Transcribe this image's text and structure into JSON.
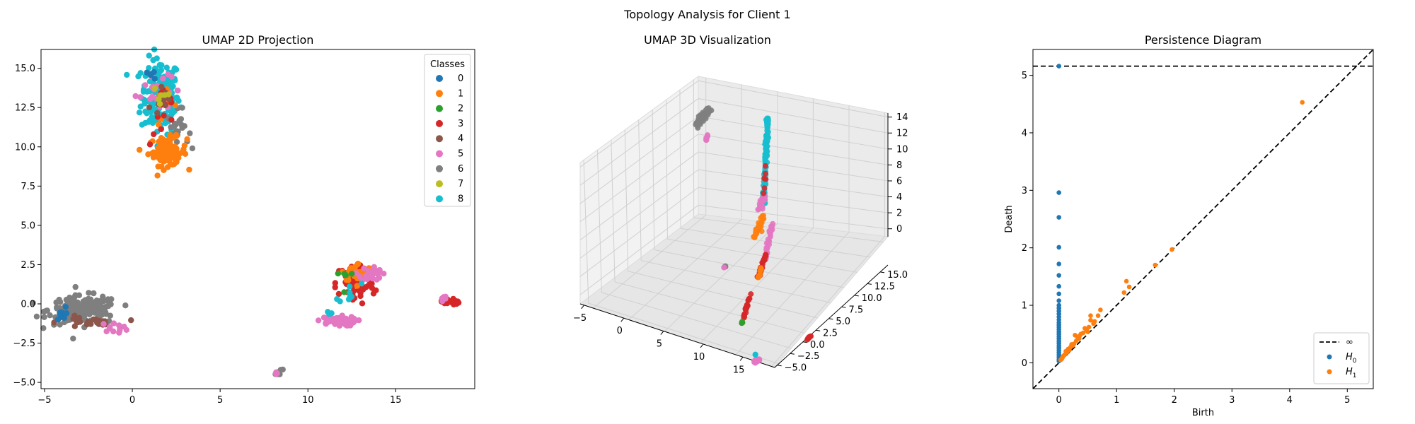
{
  "figure": {
    "suptitle": "Topology Analysis for Client 1"
  },
  "palette": [
    "#1f77b4",
    "#ff7f0e",
    "#2ca02c",
    "#d62728",
    "#8c564b",
    "#e377c2",
    "#7f7f7f",
    "#bcbd22",
    "#17becf"
  ],
  "chart_data": [
    {
      "type": "scatter",
      "title": "UMAP 2D Projection",
      "xlabel": "",
      "ylabel": "",
      "xlim": [
        -5.2,
        19.5
      ],
      "ylim": [
        -5.4,
        16.2
      ],
      "xticks": [
        -5,
        0,
        5,
        10,
        15
      ],
      "yticks": [
        -5.0,
        -2.5,
        0.0,
        2.5,
        5.0,
        7.5,
        10.0,
        12.5,
        15.0
      ],
      "ytick_labels": [
        "−5.0",
        "−2.5",
        "0.0",
        "2.5",
        "5.0",
        "7.5",
        "10.0",
        "12.5",
        "15.0"
      ],
      "xtick_labels": [
        "−5",
        "0",
        "5",
        "10",
        "15"
      ],
      "legend": {
        "title": "Classes",
        "position": "top-right",
        "entries": [
          "0",
          "1",
          "2",
          "3",
          "4",
          "5",
          "6",
          "7",
          "8"
        ]
      },
      "clusters": [
        {
          "class": 8,
          "cx": 1.6,
          "cy": 13.2,
          "sx": 0.55,
          "sy": 1.2,
          "n": 180
        },
        {
          "class": 6,
          "cx": 2.6,
          "cy": 11.1,
          "sx": 0.3,
          "sy": 0.6,
          "n": 25
        },
        {
          "class": 5,
          "cx": 1.2,
          "cy": 13.8,
          "sx": 0.5,
          "sy": 0.8,
          "n": 20
        },
        {
          "class": 1,
          "cx": 2.0,
          "cy": 9.7,
          "sx": 0.55,
          "sy": 0.45,
          "n": 90
        },
        {
          "class": 1,
          "cx": 1.9,
          "cy": 12.5,
          "sx": 0.3,
          "sy": 0.6,
          "n": 10
        },
        {
          "class": 3,
          "cx": 1.8,
          "cy": 12.0,
          "sx": 0.4,
          "sy": 1.0,
          "n": 12
        },
        {
          "class": 4,
          "cx": 1.6,
          "cy": 13.0,
          "sx": 0.4,
          "sy": 0.8,
          "n": 8
        },
        {
          "class": 7,
          "cx": 1.7,
          "cy": 13.3,
          "sx": 0.3,
          "sy": 0.5,
          "n": 6
        },
        {
          "class": 0,
          "cx": 1.0,
          "cy": 14.6,
          "sx": 0.3,
          "sy": 0.4,
          "n": 5
        },
        {
          "class": 6,
          "cx": -2.8,
          "cy": -0.4,
          "sx": 1.0,
          "sy": 0.45,
          "n": 170
        },
        {
          "class": 4,
          "cx": -2.6,
          "cy": -1.2,
          "sx": 0.8,
          "sy": 0.2,
          "n": 25
        },
        {
          "class": 5,
          "cx": -1.0,
          "cy": -1.5,
          "sx": 0.4,
          "sy": 0.15,
          "n": 12
        },
        {
          "class": 0,
          "cx": -4.1,
          "cy": -0.7,
          "sx": 0.15,
          "sy": 0.25,
          "n": 10
        },
        {
          "class": 3,
          "cx": 12.7,
          "cy": 1.3,
          "sx": 0.55,
          "sy": 0.7,
          "n": 75
        },
        {
          "class": 1,
          "cx": 12.9,
          "cy": 2.0,
          "sx": 0.5,
          "sy": 0.3,
          "n": 35
        },
        {
          "class": 5,
          "cx": 13.6,
          "cy": 1.9,
          "sx": 0.3,
          "sy": 0.25,
          "n": 25
        },
        {
          "class": 8,
          "cx": 12.4,
          "cy": 0.9,
          "sx": 0.3,
          "sy": 0.5,
          "n": 8
        },
        {
          "class": 2,
          "cx": 12.5,
          "cy": 1.5,
          "sx": 0.3,
          "sy": 0.4,
          "n": 5
        },
        {
          "class": 5,
          "cx": 11.6,
          "cy": -1.1,
          "sx": 0.55,
          "sy": 0.15,
          "n": 70
        },
        {
          "class": 8,
          "cx": 11.3,
          "cy": -0.7,
          "sx": 0.1,
          "sy": 0.1,
          "n": 3
        },
        {
          "class": 6,
          "cx": 8.3,
          "cy": -4.3,
          "sx": 0.12,
          "sy": 0.12,
          "n": 8
        },
        {
          "class": 5,
          "cx": 8.2,
          "cy": -4.45,
          "sx": 0.05,
          "sy": 0.05,
          "n": 4
        },
        {
          "class": 3,
          "cx": 18.1,
          "cy": 0.15,
          "sx": 0.25,
          "sy": 0.12,
          "n": 22
        },
        {
          "class": 5,
          "cx": 17.7,
          "cy": 0.35,
          "sx": 0.1,
          "sy": 0.08,
          "n": 6
        }
      ]
    },
    {
      "type": "scatter3d",
      "title": "UMAP 3D Visualization",
      "xticks": [
        -5,
        0,
        5,
        10,
        15
      ],
      "xtick_labels": [
        "−5",
        "0",
        "5",
        "10",
        "15"
      ],
      "yticks": [
        -5.0,
        -2.5,
        0.0,
        2.5,
        5.0,
        7.5,
        10.0,
        12.5,
        15.0
      ],
      "ytick_labels": [
        "−5.0",
        "−2.5",
        "0.0",
        "2.5",
        "5.0",
        "7.5",
        "10.0",
        "12.5",
        "15.0"
      ],
      "zticks": [
        0,
        2,
        4,
        6,
        8,
        10,
        12,
        14
      ],
      "ztick_labels": [
        "0",
        "2",
        "4",
        "6",
        "8",
        "10",
        "12",
        "14"
      ],
      "xlim": [
        -5.5,
        19
      ],
      "ylim": [
        -5.5,
        16.5
      ],
      "zlim": [
        -1,
        14.5
      ],
      "clusters": [
        {
          "class": 6,
          "from": [
            -4.6,
            15.0,
            9.6
          ],
          "to": [
            -3.6,
            15.5,
            11.1
          ],
          "spread": 0.55,
          "n": 70
        },
        {
          "class": 5,
          "from": [
            -3.6,
            15.0,
            8.0
          ],
          "to": [
            -3.2,
            15.0,
            8.8
          ],
          "spread": 0.2,
          "n": 6
        },
        {
          "class": 8,
          "from": [
            7.0,
            10.5,
            4.5
          ],
          "to": [
            7.2,
            11.0,
            14.0
          ],
          "spread": 0.25,
          "n": 110
        },
        {
          "class": 5,
          "from": [
            6.4,
            10.6,
            4.0
          ],
          "to": [
            7.0,
            10.6,
            5.5
          ],
          "spread": 0.35,
          "n": 18
        },
        {
          "class": 1,
          "from": [
            6.0,
            10.3,
            1.0
          ],
          "to": [
            6.8,
            10.8,
            3.2
          ],
          "spread": 0.45,
          "n": 30
        },
        {
          "class": 3,
          "from": [
            7.0,
            10.6,
            5.5
          ],
          "to": [
            7.2,
            10.8,
            9.0
          ],
          "spread": 0.2,
          "n": 6
        },
        {
          "class": 5,
          "from": [
            13.2,
            1.5,
            5.0
          ],
          "to": [
            13.5,
            2.4,
            8.6
          ],
          "spread": 0.2,
          "n": 35
        },
        {
          "class": 3,
          "from": [
            12.6,
            1.0,
            3.0
          ],
          "to": [
            13.2,
            1.6,
            5.5
          ],
          "spread": 0.2,
          "n": 30
        },
        {
          "class": 1,
          "from": [
            12.6,
            1.2,
            3.0
          ],
          "to": [
            12.8,
            1.4,
            4.2
          ],
          "spread": 0.15,
          "n": 8
        },
        {
          "class": 3,
          "from": [
            11.6,
            -0.5,
            -1.2
          ],
          "to": [
            12.2,
            0.2,
            1.8
          ],
          "spread": 0.15,
          "n": 25
        },
        {
          "class": 2,
          "from": [
            11.6,
            -0.6,
            -1.2
          ],
          "to": [
            11.7,
            -0.5,
            -0.9
          ],
          "spread": 0.1,
          "n": 3
        },
        {
          "class": 6,
          "from": [
            4.0,
            7.5,
            -1.0
          ],
          "to": [
            4.2,
            7.5,
            -1.0
          ],
          "spread": 0.1,
          "n": 4
        },
        {
          "class": 5,
          "from": [
            4.0,
            7.4,
            -1.1
          ],
          "to": [
            4.1,
            7.4,
            -1.1
          ],
          "spread": 0.05,
          "n": 2
        },
        {
          "class": 5,
          "from": [
            14.5,
            -2.6,
            -3.5
          ],
          "to": [
            14.9,
            -2.4,
            -3.3
          ],
          "spread": 0.3,
          "n": 30
        },
        {
          "class": 8,
          "from": [
            14.4,
            -2.3,
            -2.9
          ],
          "to": [
            14.5,
            -2.2,
            -2.8
          ],
          "spread": 0.1,
          "n": 3
        },
        {
          "class": 3,
          "from": [
            18.4,
            1.8,
            -2.8
          ],
          "to": [
            18.6,
            2.0,
            -2.6
          ],
          "spread": 0.1,
          "n": 10
        }
      ]
    },
    {
      "type": "scatter",
      "title": "Persistence Diagram",
      "xlabel": "Birth",
      "ylabel": "Death",
      "xlim": [
        -0.45,
        5.45
      ],
      "ylim": [
        -0.45,
        5.45
      ],
      "xticks": [
        0,
        1,
        2,
        3,
        4,
        5
      ],
      "yticks": [
        0,
        1,
        2,
        3,
        4,
        5
      ],
      "infinity_level": 5.16,
      "legend": {
        "position": "lower-right",
        "entries": [
          {
            "label": "∞",
            "kind": "dashed-line"
          },
          {
            "label": "H",
            "sub": "0",
            "kind": "point",
            "color": "#1f77b4"
          },
          {
            "label": "H",
            "sub": "1",
            "kind": "point",
            "color": "#ff7f0e"
          }
        ]
      },
      "series": [
        {
          "name": "H0",
          "color": "#1f77b4",
          "points": [
            [
              0,
              5.16
            ],
            [
              0,
              2.96
            ],
            [
              0,
              2.53
            ],
            [
              0,
              2.01
            ],
            [
              0,
              1.72
            ],
            [
              0,
              1.52
            ],
            [
              0,
              1.33
            ],
            [
              0,
              1.2
            ],
            [
              0,
              1.08
            ],
            [
              0,
              1.0
            ],
            [
              0,
              0.95
            ],
            [
              0,
              0.9
            ],
            [
              0,
              0.85
            ],
            [
              0,
              0.8
            ],
            [
              0,
              0.75
            ],
            [
              0,
              0.7
            ],
            [
              0,
              0.66
            ],
            [
              0,
              0.62
            ],
            [
              0,
              0.58
            ],
            [
              0,
              0.54
            ],
            [
              0,
              0.5
            ],
            [
              0,
              0.46
            ],
            [
              0,
              0.42
            ],
            [
              0,
              0.38
            ],
            [
              0,
              0.34
            ],
            [
              0,
              0.3
            ],
            [
              0,
              0.26
            ],
            [
              0,
              0.22
            ],
            [
              0,
              0.18
            ],
            [
              0,
              0.14
            ],
            [
              0,
              0.1
            ],
            [
              0,
              0.06
            ],
            [
              0,
              0.03
            ]
          ]
        },
        {
          "name": "H1",
          "color": "#ff7f0e",
          "points": [
            [
              4.22,
              4.53
            ],
            [
              1.96,
              1.97
            ],
            [
              1.67,
              1.7
            ],
            [
              1.22,
              1.32
            ],
            [
              1.17,
              1.42
            ],
            [
              1.13,
              1.22
            ],
            [
              0.72,
              0.92
            ],
            [
              0.68,
              0.82
            ],
            [
              0.6,
              0.68
            ],
            [
              0.55,
              0.82
            ],
            [
              0.55,
              0.74
            ],
            [
              0.52,
              0.62
            ],
            [
              0.48,
              0.57
            ],
            [
              0.45,
              0.6
            ],
            [
              0.42,
              0.52
            ],
            [
              0.38,
              0.5
            ],
            [
              0.35,
              0.42
            ],
            [
              0.32,
              0.45
            ],
            [
              0.3,
              0.38
            ],
            [
              0.28,
              0.48
            ],
            [
              0.26,
              0.33
            ],
            [
              0.24,
              0.3
            ],
            [
              0.22,
              0.32
            ],
            [
              0.2,
              0.27
            ],
            [
              0.18,
              0.22
            ],
            [
              0.16,
              0.24
            ],
            [
              0.14,
              0.18
            ],
            [
              0.12,
              0.2
            ],
            [
              0.1,
              0.14
            ],
            [
              0.08,
              0.12
            ],
            [
              0.06,
              0.09
            ],
            [
              0.05,
              0.07
            ],
            [
              0.04,
              0.06
            ],
            [
              0.03,
              0.05
            ],
            [
              0.36,
              0.47
            ],
            [
              0.62,
              0.72
            ],
            [
              0.5,
              0.54
            ]
          ]
        }
      ]
    }
  ]
}
